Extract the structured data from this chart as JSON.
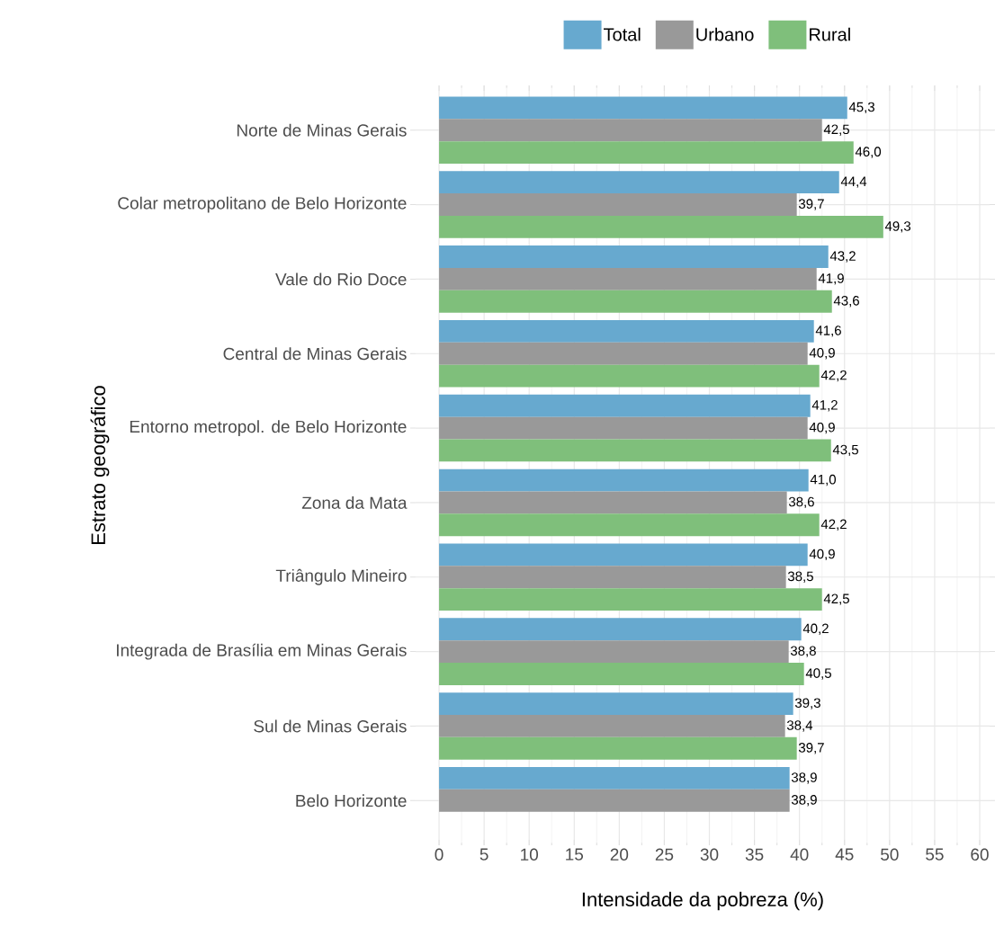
{
  "chart_data": {
    "type": "bar",
    "orientation": "horizontal",
    "xlabel": "Intensidade da pobreza (%)",
    "ylabel": "Estrato geográfico",
    "categories": [
      "Norte de Minas Gerais",
      "Colar metropolitano de Belo Horizonte",
      "Vale do Rio Doce",
      "Central de Minas Gerais",
      "Entorno metropol. de Belo Horizonte",
      "Zona da Mata",
      "Triângulo Mineiro",
      "Integrada de Brasília em Minas Gerais",
      "Sul de Minas Gerais",
      "Belo Horizonte"
    ],
    "series": [
      {
        "name": "Total",
        "color": "#67a9cf",
        "values": [
          45.3,
          44.4,
          43.2,
          41.6,
          41.2,
          41.0,
          40.9,
          40.2,
          39.3,
          38.9
        ],
        "value_labels": [
          "45,3",
          "44,4",
          "43,2",
          "41,6",
          "41,2",
          "41,0",
          "40,9",
          "40,2",
          "39,3",
          "38,9"
        ]
      },
      {
        "name": "Urbano",
        "color": "#999999",
        "values": [
          42.5,
          39.7,
          41.9,
          40.9,
          40.9,
          38.6,
          38.5,
          38.8,
          38.4,
          38.9
        ],
        "value_labels": [
          "42,5",
          "39,7",
          "41,9",
          "40,9",
          "40,9",
          "38,6",
          "38,5",
          "38,8",
          "38,4",
          "38,9"
        ]
      },
      {
        "name": "Rural",
        "color": "#7fbf7b",
        "values": [
          46.0,
          49.3,
          43.6,
          42.2,
          43.5,
          42.2,
          42.5,
          40.5,
          39.7,
          null
        ],
        "value_labels": [
          "46,0",
          "49,3",
          "43,6",
          "42,2",
          "43,5",
          "42,2",
          "42,5",
          "40,5",
          "39,7",
          null
        ]
      }
    ],
    "xlim": [
      -2.6,
      61.1
    ],
    "xticks": [
      0,
      5,
      10,
      15,
      20,
      25,
      30,
      35,
      40,
      45,
      50,
      55,
      60
    ],
    "grid": true,
    "legend": "top"
  }
}
